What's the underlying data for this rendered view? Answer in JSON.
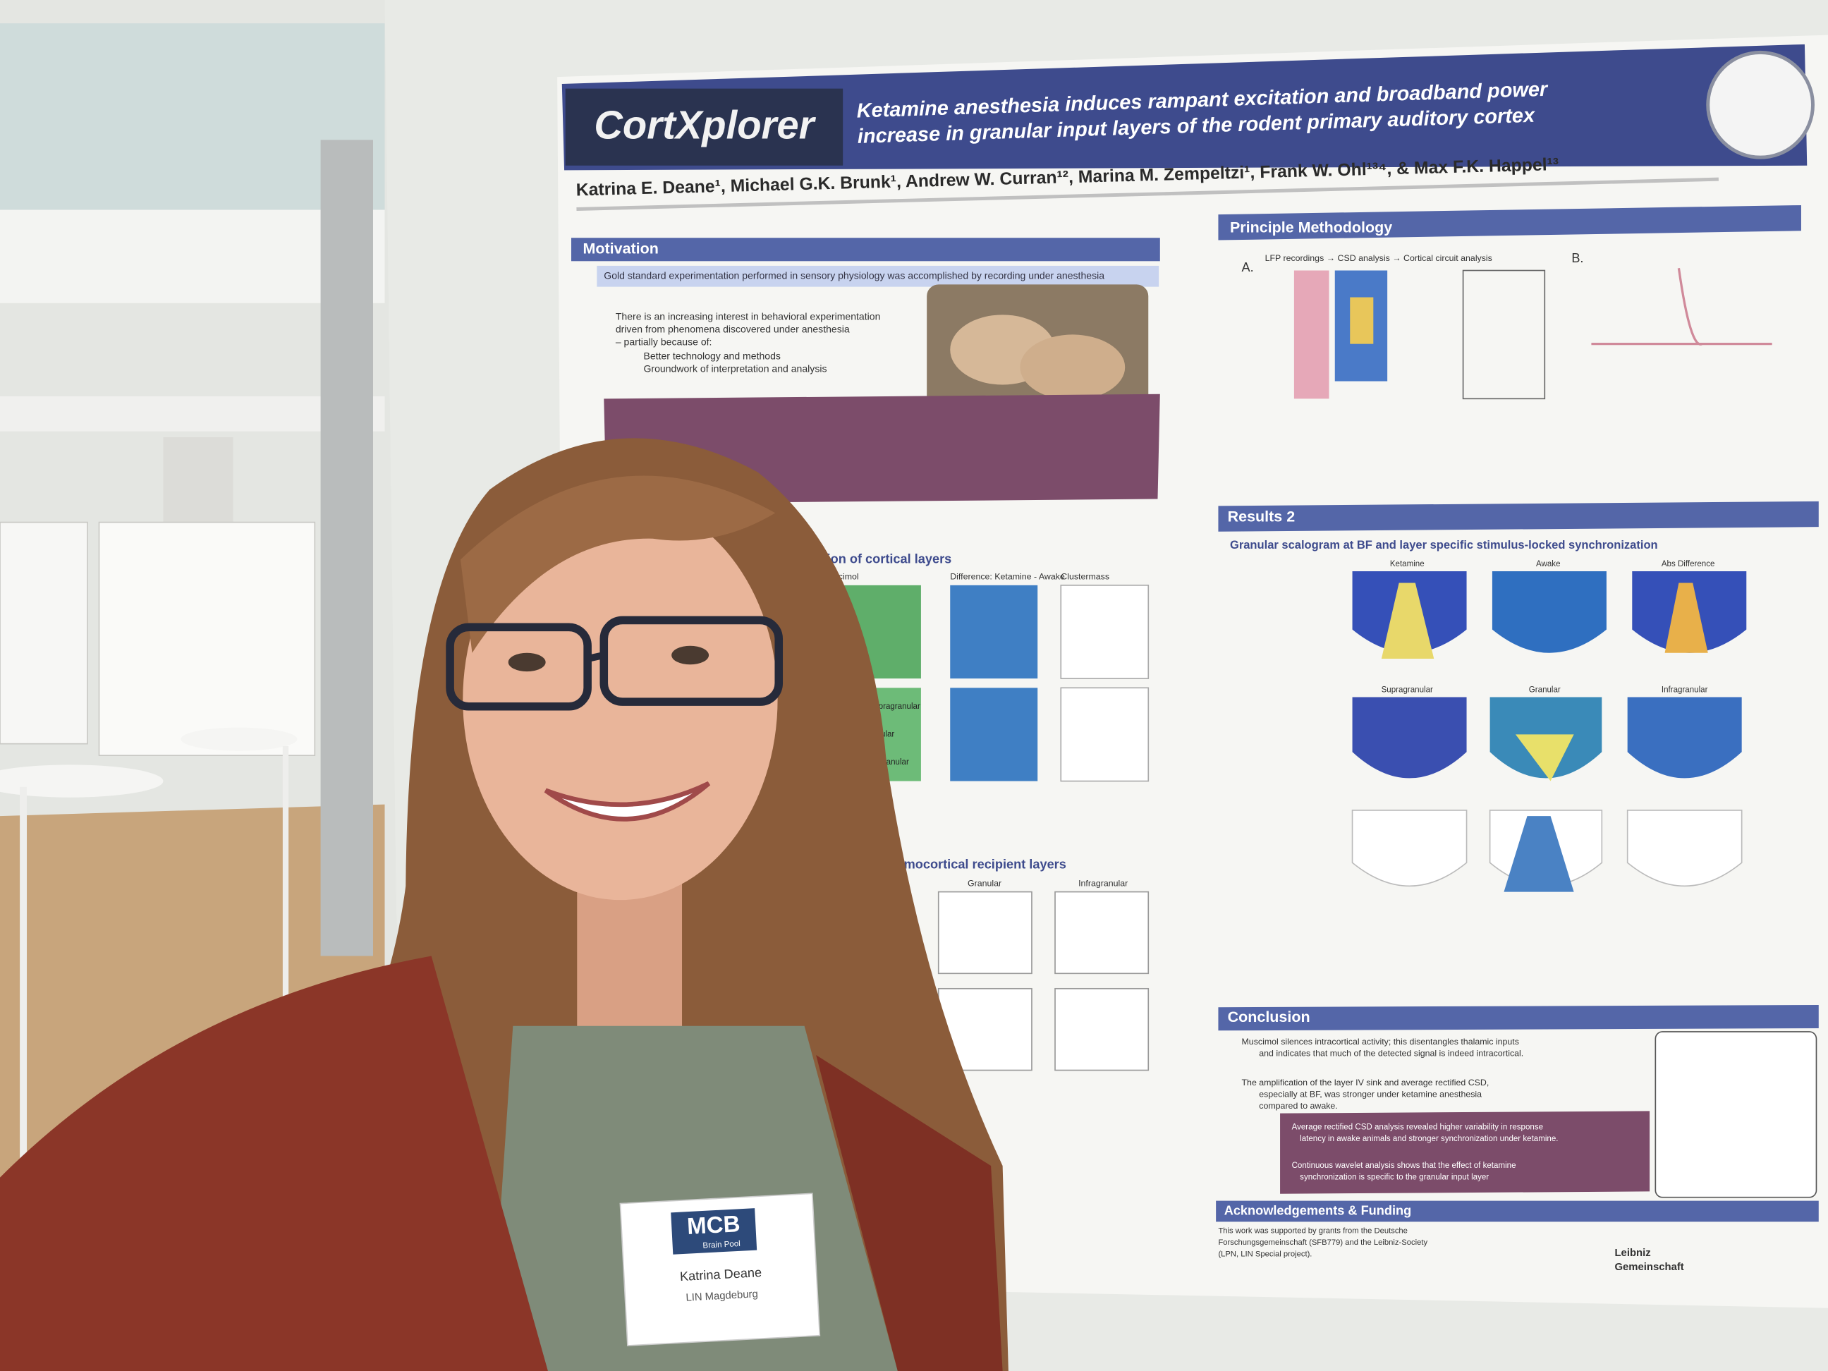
{
  "poster": {
    "logo": "CortXplorer",
    "title": [
      "Ketamine anesthesia induces rampant excitation and broadband power",
      "increase in granular input layers of the rodent primary auditory cortex"
    ],
    "authors": "Katrina E. Deane¹, Michael G.K. Brunk¹, Andrew W. Curran¹², Marina M. Zempeltzi¹, Frank W. Ohl¹³⁴, & Max F.K. Happel¹³",
    "motivation": {
      "heading": "Motivation",
      "lead": "Gold standard experimentation performed in sensory physiology was accomplished by recording under anesthesia",
      "body": [
        "There is an increasing interest in behavioral experimentation",
        "driven from phenomena discovered under anesthesia",
        "– partially because of:",
        "Better technology and methods",
        "Groundwork of interpretation and analysis"
      ]
    },
    "methodology": {
      "heading": "Principle Methodology",
      "flow": "LFP recordings → CSD analysis → Cortical circuit analysis",
      "labels": [
        "A.",
        "B."
      ]
    },
    "results1": {
      "heading": "tification of cortical layers",
      "panels": [
        "Muscimol",
        "Difference: Ketamine - Awake",
        "Clustermass"
      ],
      "rows": [
        "Supragranular",
        "Granular",
        "Infragranular"
      ],
      "subheading": "alamocortical recipient layers",
      "plots": [
        "Granular",
        "Infragranular"
      ]
    },
    "results2": {
      "heading": "Results 2",
      "subheading": "Granular scalogram at BF and layer specific stimulus-locked synchronization",
      "rowA": [
        "Ketamine",
        "Awake",
        "Abs Difference"
      ],
      "rowB": [
        "Supragranular",
        "Granular",
        "Infragranular"
      ]
    },
    "conclusion": {
      "heading": "Conclusion",
      "bullets": [
        "Muscimol silences intracortical activity; this disentangles thalamic inputs",
        "and indicates that much of the detected signal is indeed intracortical.",
        "The amplification of the layer IV sink and average rectified CSD,",
        "especially at BF, was stronger under ketamine anesthesia",
        "compared to awake."
      ],
      "box": [
        "Average rectified CSD analysis revealed higher variability in response",
        "latency in awake animals and stronger synchronization under ketamine.",
        "Continuous wavelet analysis shows that the effect of ketamine",
        "synchronization is specific to the granular input layer"
      ]
    },
    "acknowledgements": {
      "heading": "Acknowledgements & Funding",
      "lines": [
        "This work was supported by grants from the Deutsche",
        "Forschungsgemeinschaft (SFB779) and the Leibniz-Society",
        "(LPN, LIN Special project)."
      ],
      "sponsor": [
        "Leibniz",
        "Gemeinschaft"
      ]
    }
  },
  "badge": {
    "logo": "MCB",
    "sub": "Brain Pool",
    "name": "Katrina Deane",
    "institute": "LIN Magdeburg"
  }
}
